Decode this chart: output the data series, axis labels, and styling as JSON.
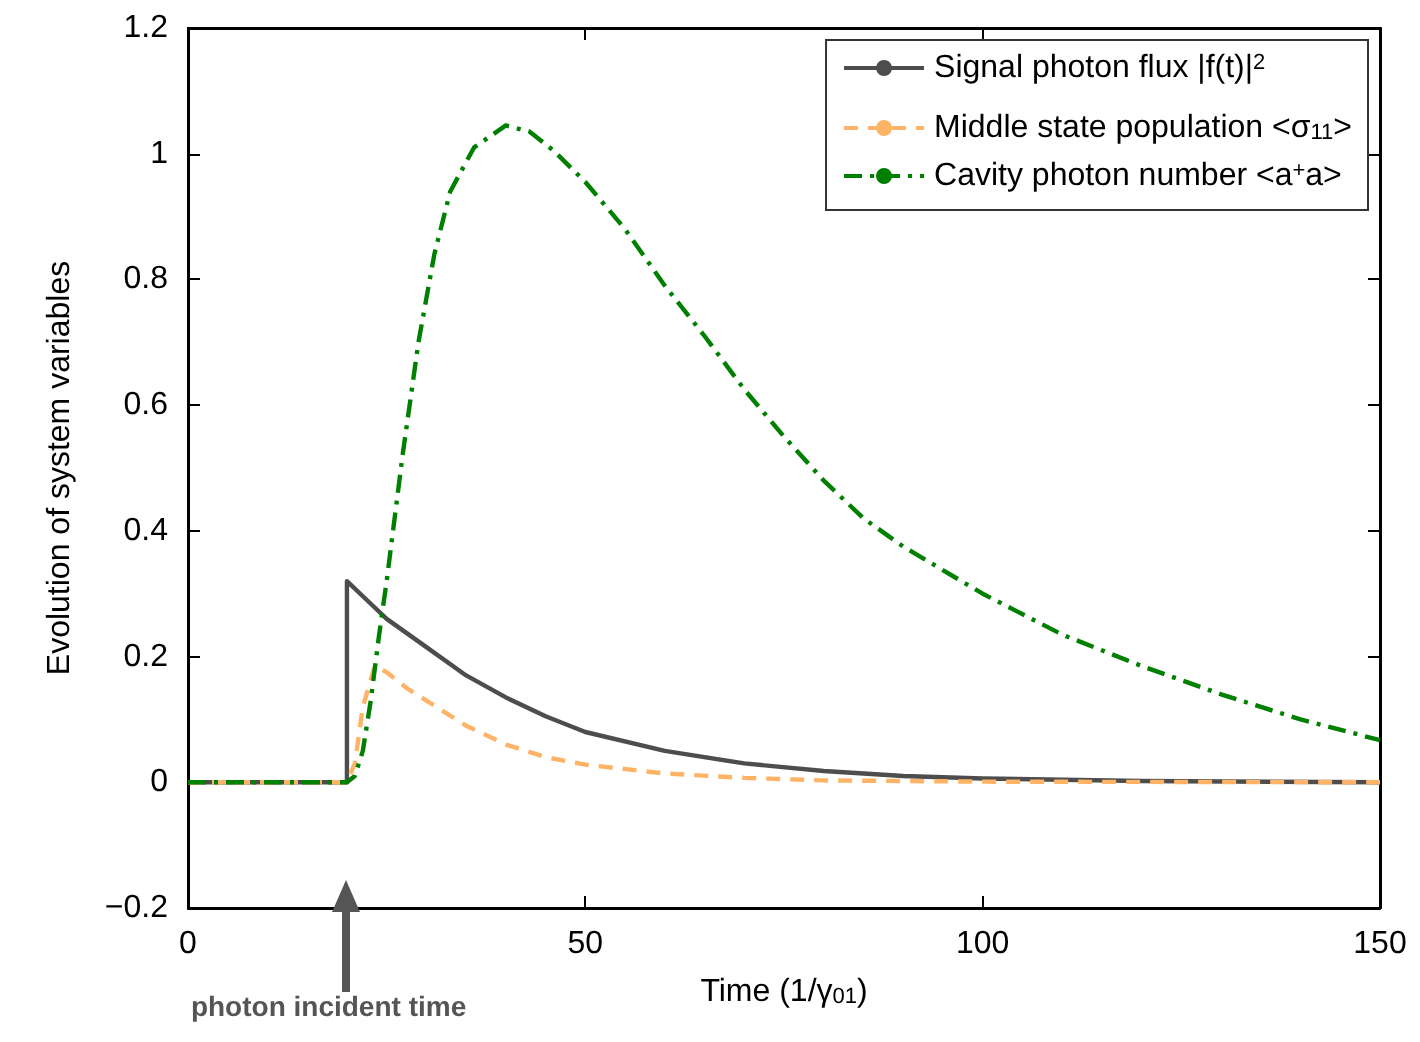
{
  "chart_data": {
    "type": "line",
    "xlabel": "Time (1/γ$_{01}$)",
    "ylabel": "Evolution of system variables",
    "xlim": [
      0,
      150
    ],
    "xticks": [
      0,
      50,
      100,
      150
    ],
    "ylim": [
      -0.2,
      1.2
    ],
    "yticks": [
      -0.2,
      0,
      0.2,
      0.4,
      0.6,
      0.8,
      1,
      1.2
    ],
    "grid": false,
    "legend": "top right",
    "marker": "none",
    "annotations": [
      "photon incident time"
    ],
    "series": [
      {
        "name": "Signal photon flux |f(t)|$^{2}$",
        "color": "#4d4d4d",
        "line_style": "solid",
        "x": [
          0,
          20,
          20,
          22.5,
          25,
          30,
          35,
          40,
          45,
          50,
          60,
          70,
          80,
          90,
          100,
          120,
          150
        ],
        "values": [
          0,
          0,
          0.32,
          0.29,
          0.26,
          0.215,
          0.17,
          0.135,
          0.105,
          0.08,
          0.05,
          0.03,
          0.018,
          0.01,
          0.006,
          0.002,
          0
        ]
      },
      {
        "name": "Middle state population <σ$_{11}$>",
        "color": "#ffb366",
        "line_style": "dashed",
        "x": [
          0,
          20,
          21,
          22,
          23.5,
          25,
          27.5,
          30,
          35,
          40,
          45,
          50,
          60,
          70,
          80,
          100,
          150
        ],
        "values": [
          0,
          0,
          0.03,
          0.12,
          0.185,
          0.175,
          0.15,
          0.13,
          0.09,
          0.06,
          0.04,
          0.028,
          0.014,
          0.007,
          0.003,
          0.001,
          0
        ]
      },
      {
        "name": "Cavity photon number <a$^{+}$a>",
        "color": "#008000",
        "line_style": "dashdot",
        "x": [
          0,
          20,
          21,
          22,
          23,
          24,
          25,
          27,
          29,
          31,
          33,
          36,
          40,
          43,
          46,
          50,
          55,
          60,
          65,
          70,
          75,
          80,
          85,
          90,
          100,
          110,
          120,
          130,
          140,
          150
        ],
        "values": [
          0,
          0,
          0.01,
          0.05,
          0.13,
          0.23,
          0.32,
          0.52,
          0.7,
          0.84,
          0.94,
          1.01,
          1.045,
          1.035,
          1.005,
          0.955,
          0.88,
          0.79,
          0.71,
          0.625,
          0.55,
          0.48,
          0.42,
          0.375,
          0.3,
          0.235,
          0.185,
          0.14,
          0.1,
          0.067
        ]
      }
    ]
  }
}
